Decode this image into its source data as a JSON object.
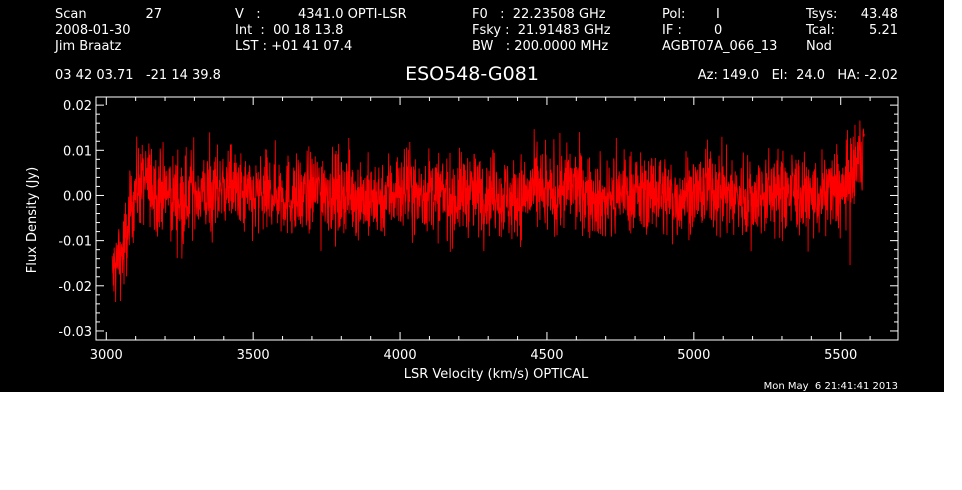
{
  "header": {
    "col1": [
      "Scan",
      "2008-01-30",
      "Jim Braatz"
    ],
    "scan_number": "27",
    "col2": [
      "V   :",
      "Int  :  00 18 13.8",
      "LST : +01 41 07.4"
    ],
    "velocity": "4341.0 OPTI-LSR",
    "col3": [
      "F0   :  22.23508 GHz",
      "Fsky :  21.91483 GHz",
      "BW   : 200.0000 MHz"
    ],
    "col4": [
      "Pol:",
      "IF :",
      "AGBT07A_066_13"
    ],
    "col4_values": [
      "I",
      "0"
    ],
    "col5": [
      "Tsys:",
      "Tcal:",
      "Nod"
    ],
    "col5_values": [
      "43.48",
      "5.21"
    ],
    "coords": "03 42 03.71   -21 14 39.8",
    "source": "ESO548-G081",
    "pointing": "Az: 149.0   El:  24.0   HA: -2.02"
  },
  "timestamp": "Mon May  6 21:41:41 2013",
  "colors": {
    "background": "#000000",
    "axes": "#ffffff",
    "trace": "#ff0000"
  },
  "chart_data": {
    "type": "line",
    "xlabel": "LSR Velocity (km/s) OPTICAL",
    "ylabel": "Flux Density (Jy)",
    "xlim": [
      2965,
      5695
    ],
    "ylim": [
      -0.032,
      0.0218
    ],
    "xticks": [
      3000,
      3500,
      4000,
      4500,
      5000,
      5500
    ],
    "xtick_labels": [
      "3000",
      "3500",
      "4000",
      "4500",
      "5000",
      "5500"
    ],
    "yticks": [
      -0.03,
      -0.02,
      -0.01,
      0.0,
      0.01,
      0.02
    ],
    "ytick_labels": [
      "-0.03",
      "-0.02",
      "-0.01",
      "0.00",
      "0.01",
      "0.02"
    ],
    "grid": false,
    "series": [
      {
        "x_start": 3020,
        "x_step": 40,
        "noise_rms": 0.0045,
        "values": [
          -0.018,
          -0.012,
          0.002,
          0.003,
          0.001,
          0.0,
          -0.001,
          0.001,
          0.0,
          0.001,
          0.002,
          0.0,
          -0.001,
          0.0,
          0.001,
          0.0,
          -0.001,
          0.001,
          0.002,
          0.0,
          0.001,
          0.0,
          -0.001,
          0.0,
          0.001,
          0.002,
          0.0,
          0.001,
          0.0,
          -0.001,
          0.001,
          0.0,
          0.001,
          0.0,
          -0.001,
          0.0,
          0.001,
          0.0,
          0.001,
          0.002,
          0.001,
          0.0,
          -0.001,
          0.0,
          0.001,
          0.0,
          0.001,
          0.0,
          -0.001,
          0.001,
          0.0,
          0.002,
          0.001,
          0.0,
          -0.001,
          0.0,
          0.001,
          0.0,
          0.001,
          0.0,
          -0.001,
          0.001,
          0.0,
          0.004,
          0.012
        ]
      }
    ]
  }
}
